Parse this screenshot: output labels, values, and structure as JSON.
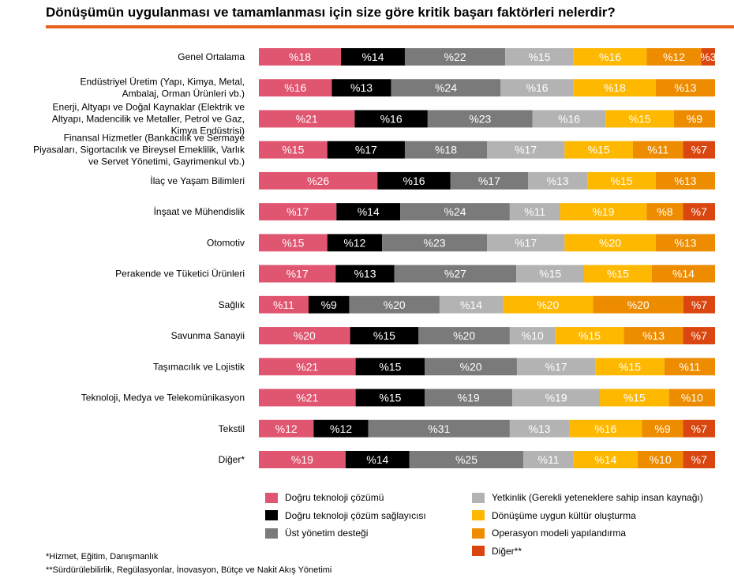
{
  "title": "Dönüşümün uygulanması ve tamamlanması için size göre kritik başarı faktörleri nelerdir?",
  "chart_data": {
    "type": "bar",
    "orientation": "horizontal",
    "stacked": true,
    "value_prefix": "%",
    "categories": [
      [
        "Genel Ortalama"
      ],
      [
        "Endüstriyel Üretim (Yapı, Kimya, Metal,",
        "Ambalaj, Orman Ürünleri vb.)"
      ],
      [
        "Enerji, Altyapı ve Doğal Kaynaklar (Elektrik ve",
        "Altyapı, Madencilik ve Metaller, Petrol ve Gaz,",
        "Kimya Endüstrisi)"
      ],
      [
        "Finansal Hizmetler (Bankacılık ve Sermaye",
        "Piyasaları, Sigortacılık ve Bireysel Emeklilik, Varlık",
        "ve Servet Yönetimi, Gayrimenkul vb.)"
      ],
      [
        "İlaç ve Yaşam Bilimleri"
      ],
      [
        "İnşaat ve Mühendislik"
      ],
      [
        "Otomotiv"
      ],
      [
        "Perakende ve Tüketici Ürünleri"
      ],
      [
        "Sağlık"
      ],
      [
        "Savunma Sanayii"
      ],
      [
        "Taşımacılık ve Lojistik"
      ],
      [
        "Teknoloji, Medya ve Telekomünikasyon"
      ],
      [
        "Tekstil"
      ],
      [
        "Diğer*"
      ]
    ],
    "series": [
      {
        "name": "Doğru teknoloji çözümü",
        "color": "#e05570",
        "values": [
          18,
          16,
          21,
          15,
          26,
          17,
          15,
          17,
          11,
          20,
          21,
          21,
          12,
          19
        ]
      },
      {
        "name": "Doğru teknoloji çözüm sağlayıcısı",
        "color": "#000000",
        "values": [
          14,
          13,
          16,
          17,
          16,
          14,
          12,
          13,
          9,
          15,
          15,
          15,
          12,
          14
        ]
      },
      {
        "name": "Üst yönetim desteği",
        "color": "#7a7a7a",
        "values": [
          22,
          24,
          23,
          18,
          17,
          24,
          23,
          27,
          20,
          20,
          20,
          19,
          31,
          25
        ]
      },
      {
        "name": "Yetkinlik (Gerekli yeteneklere sahip insan kaynağı)",
        "color": "#b3b3b3",
        "values": [
          15,
          16,
          16,
          17,
          13,
          11,
          17,
          15,
          14,
          10,
          17,
          19,
          13,
          11
        ]
      },
      {
        "name": "Dönüşüme uygun kültür oluşturma",
        "color": "#ffb800",
        "values": [
          16,
          18,
          15,
          15,
          15,
          19,
          20,
          15,
          20,
          15,
          15,
          15,
          16,
          14
        ]
      },
      {
        "name": "Operasyon modeli yapılandırma",
        "color": "#ee8c00",
        "values": [
          12,
          13,
          9,
          11,
          13,
          8,
          13,
          14,
          20,
          13,
          11,
          10,
          9,
          10
        ]
      },
      {
        "name": "Diğer**",
        "color": "#d9460f",
        "values": [
          3,
          0,
          0,
          7,
          0,
          7,
          0,
          0,
          7,
          7,
          0,
          0,
          7,
          7
        ]
      }
    ],
    "legend_position": "bottom"
  },
  "legend_columns": [
    [
      0,
      1,
      2
    ],
    [
      3,
      4,
      5,
      6
    ]
  ],
  "notes": [
    "*Hizmet, Eğitim, Danışmanlık",
    "**Sürdürülebilirlik, Regülasyonlar, İnovasyon, Bütçe ve Nakit Akış Yönetimi"
  ]
}
